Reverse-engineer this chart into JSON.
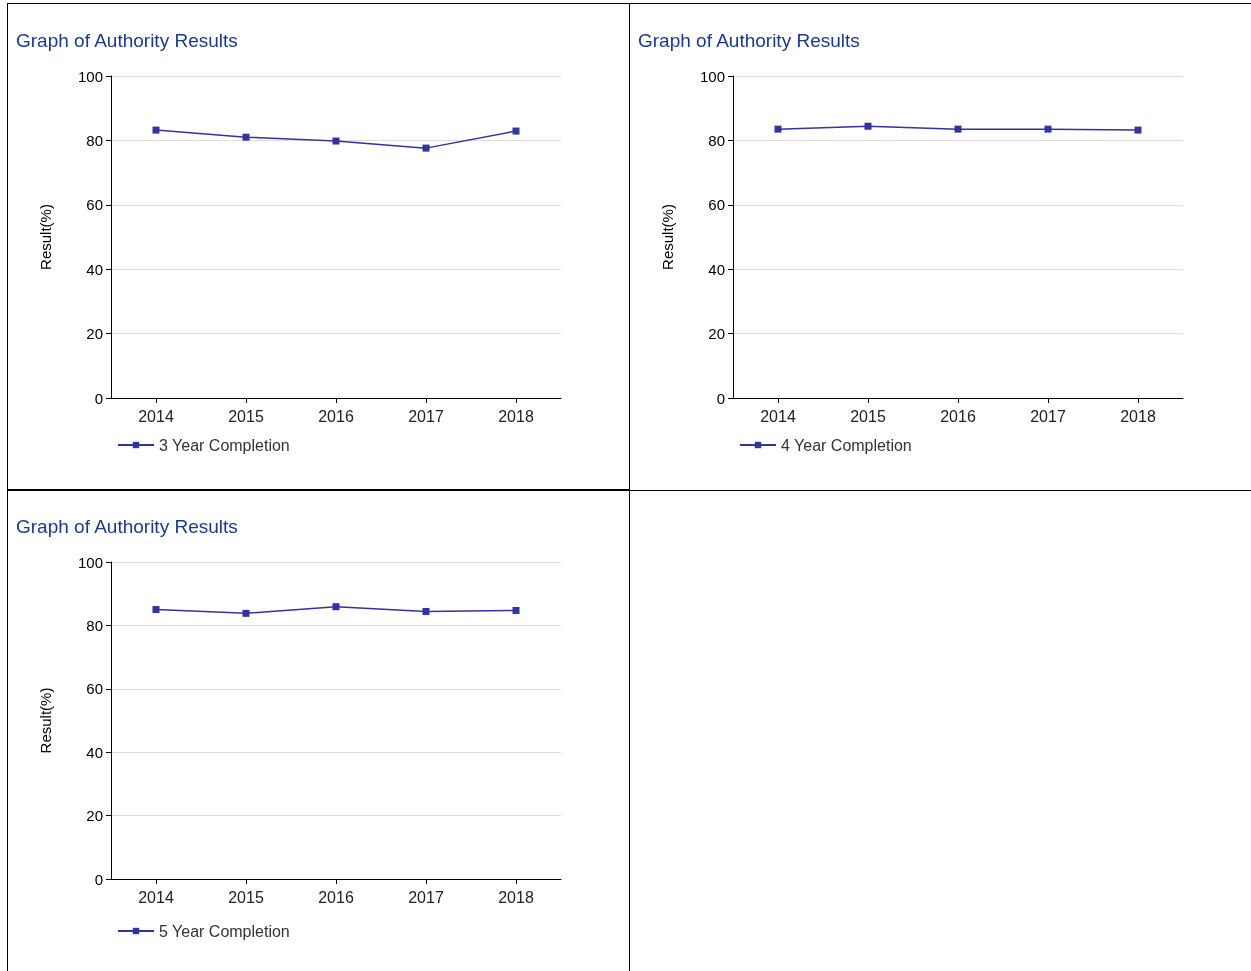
{
  "chart_data": [
    {
      "type": "line",
      "title": "Graph of Authority Results",
      "ylabel": "Result(%)",
      "categories": [
        "2014",
        "2015",
        "2016",
        "2017",
        "2018"
      ],
      "series": [
        {
          "name": "3 Year Completion",
          "color": "#3333a0",
          "values": [
            83.2,
            81.0,
            79.8,
            77.6,
            82.9
          ]
        }
      ],
      "ylim": [
        0,
        100
      ],
      "yticks": [
        0,
        20,
        40,
        60,
        80,
        100
      ],
      "grid": "y",
      "legend": "bottom",
      "marker": "square"
    },
    {
      "type": "line",
      "title": "Graph of Authority Results",
      "ylabel": "Result(%)",
      "categories": [
        "2014",
        "2015",
        "2016",
        "2017",
        "2018"
      ],
      "series": [
        {
          "name": "4 Year Completion",
          "color": "#3333a0",
          "values": [
            83.5,
            84.4,
            83.5,
            83.5,
            83.2
          ]
        }
      ],
      "ylim": [
        0,
        100
      ],
      "yticks": [
        0,
        20,
        40,
        60,
        80,
        100
      ],
      "grid": "y",
      "legend": "bottom",
      "marker": "square"
    },
    {
      "type": "line",
      "title": "Graph of Authority Results",
      "ylabel": "Result(%)",
      "categories": [
        "2014",
        "2015",
        "2016",
        "2017",
        "2018"
      ],
      "series": [
        {
          "name": "5 Year Completion",
          "color": "#3333a0",
          "values": [
            85.0,
            83.8,
            85.9,
            84.4,
            84.7
          ]
        }
      ],
      "ylim": [
        0,
        100
      ],
      "yticks": [
        0,
        20,
        40,
        60,
        80,
        100
      ],
      "grid": "y",
      "legend": "bottom",
      "marker": "square"
    }
  ]
}
